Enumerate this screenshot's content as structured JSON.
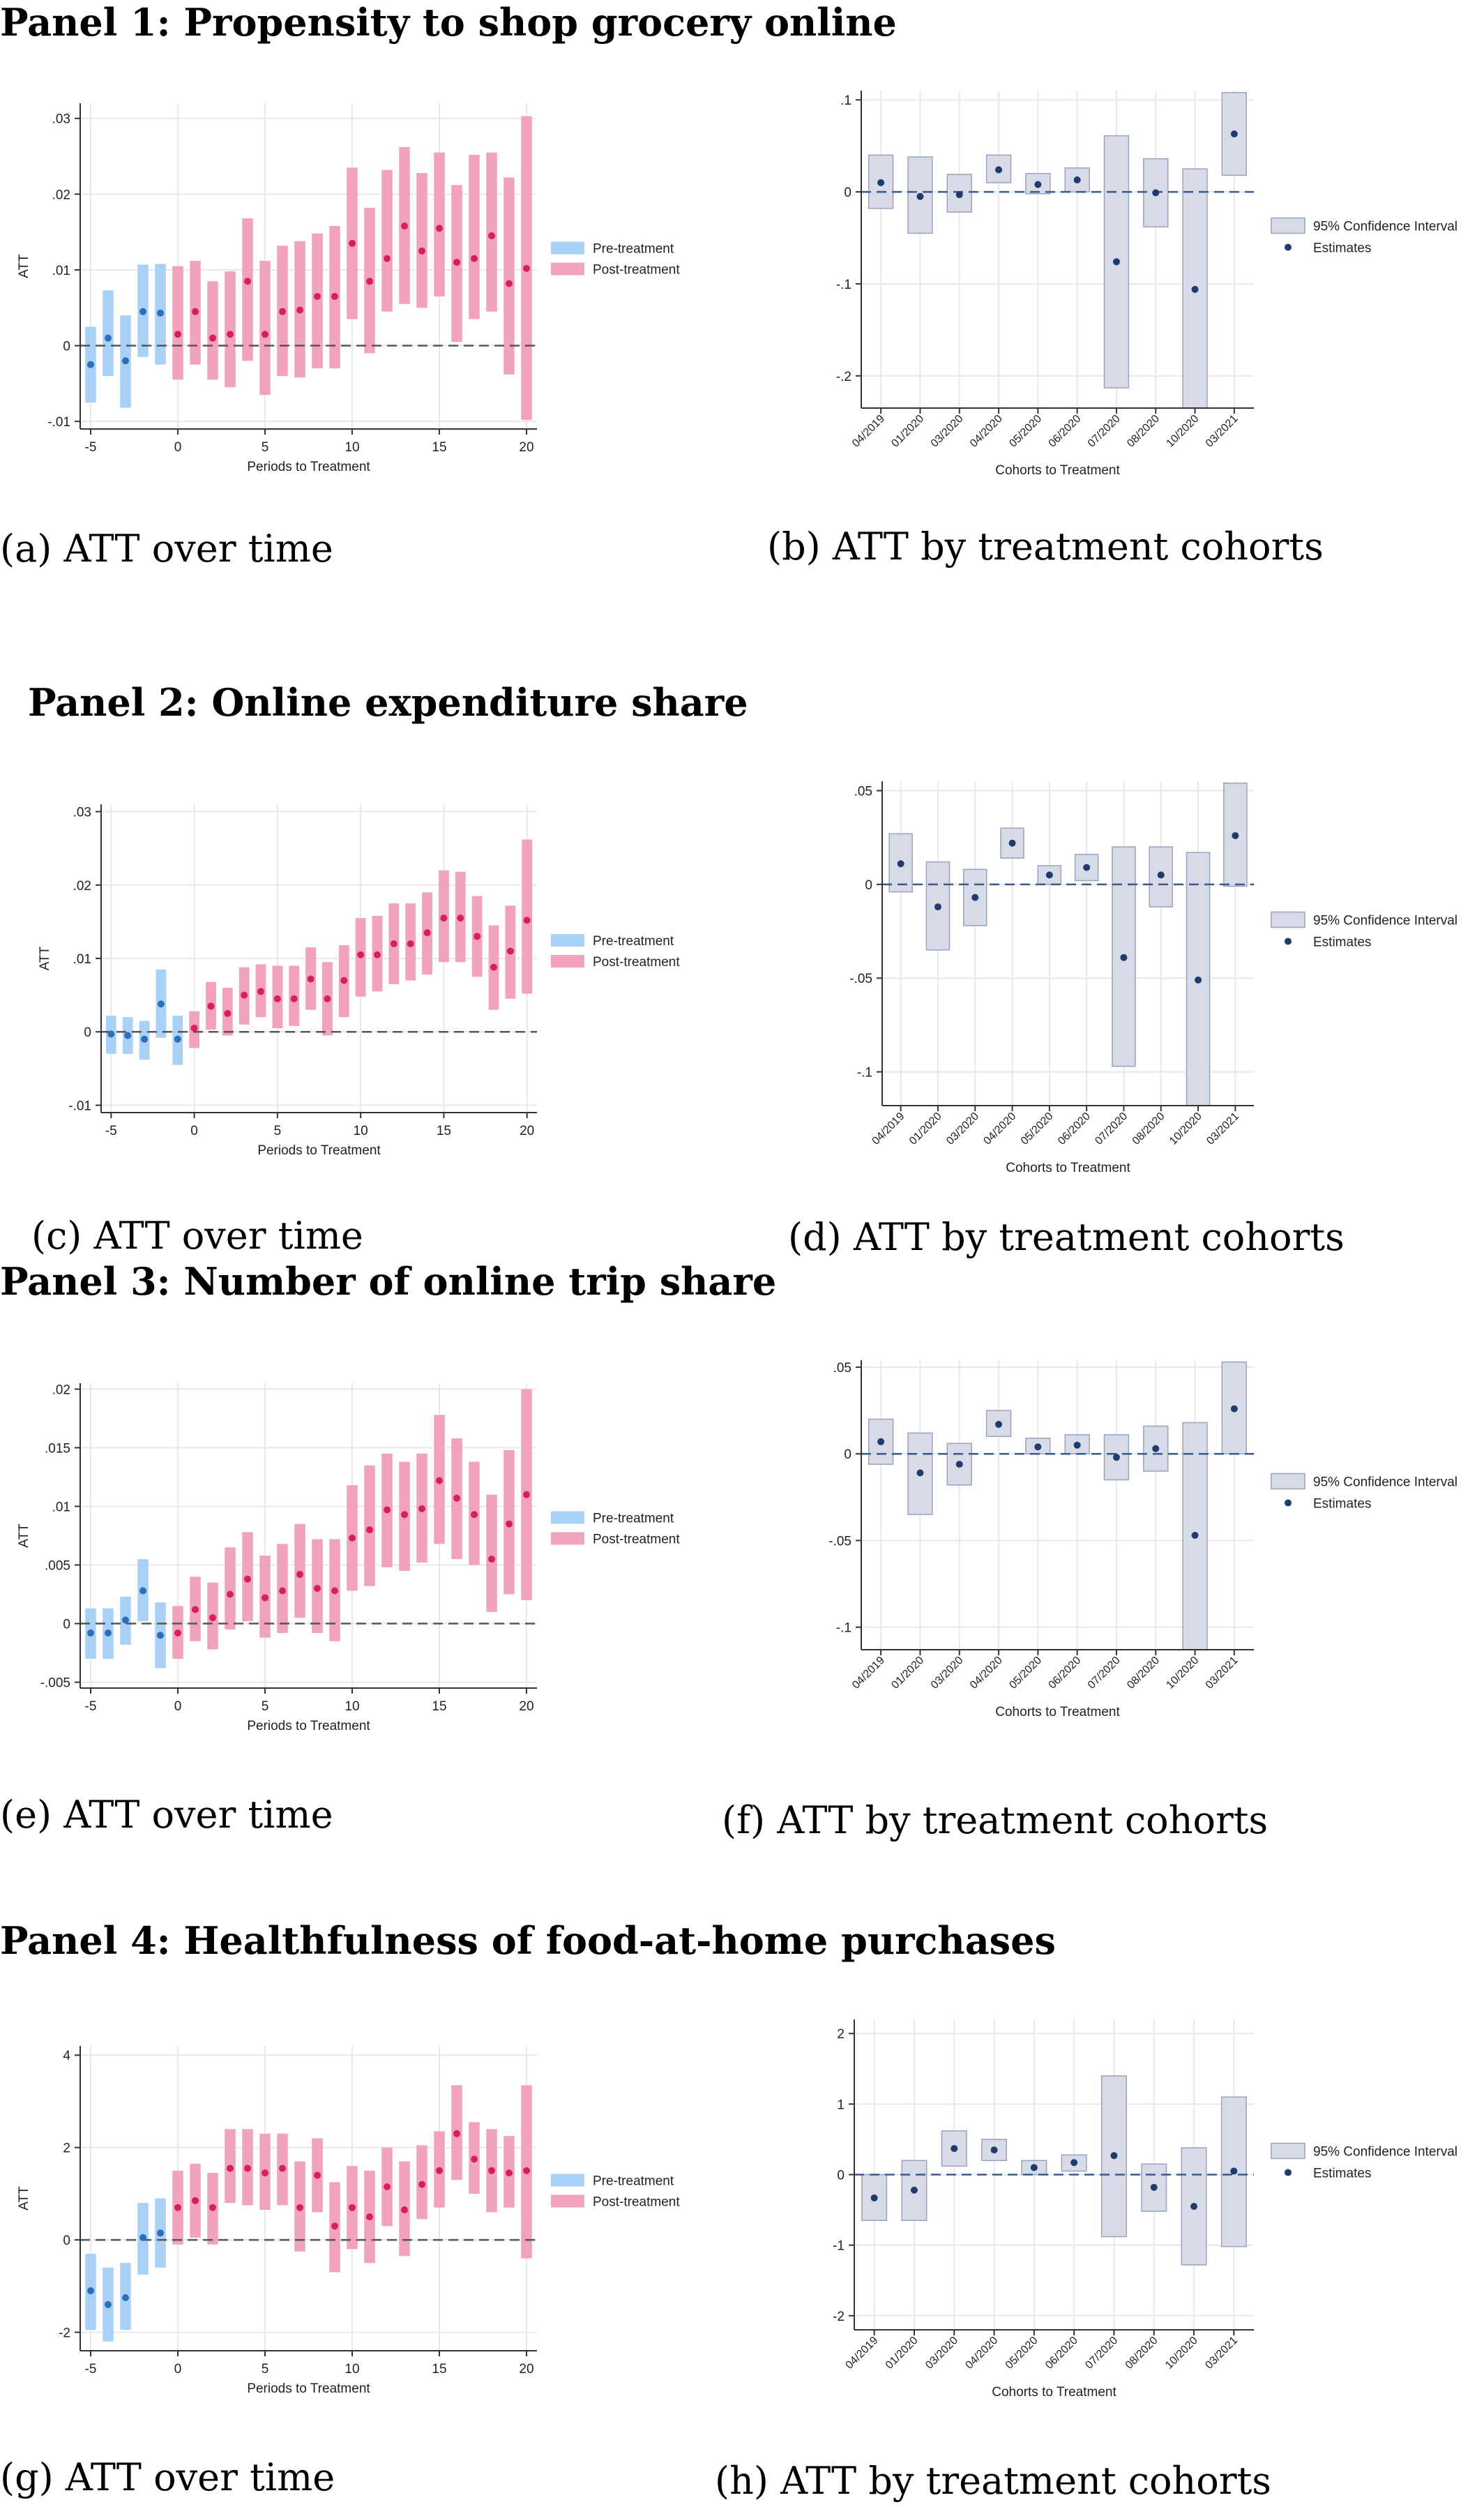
{
  "panels": [
    {
      "title": "Panel 1:  Propensity to shop grocery online",
      "caption_left": "(a) ATT over time",
      "caption_right": "(b) ATT by treatment cohorts"
    },
    {
      "title": "Panel 2:  Online expenditure share",
      "caption_left": "(c) ATT over time",
      "caption_right": "(d) ATT by treatment cohorts"
    },
    {
      "title": "Panel 3:  Number of online trip share",
      "caption_left": "(e) ATT over time",
      "caption_right": "(f) ATT by treatment cohorts"
    },
    {
      "title": "Panel 4:  Healthfulness of food-at-home purchases",
      "caption_left": "(g) ATT over time",
      "caption_right": "(h) ATT by treatment cohorts"
    }
  ],
  "colors": {
    "pre_bar": "#a9d0f5",
    "pre_point": "#2c6fb8",
    "post_bar": "#f0a3bb",
    "post_point": "#d6205a",
    "ci_box": "#d7dbe8",
    "ci_edge": "#9aa3bd",
    "estimate": "#1f3a6e",
    "zero_line": "#555555",
    "grid": "#e8e8e8",
    "axis": "#333333"
  },
  "chart_data": [
    {
      "type": "event-study",
      "xlabel": "Periods to Treatment",
      "ylabel": "ATT",
      "xlim": [
        -5,
        20
      ],
      "xticks": [
        "-5",
        "0",
        "5",
        "10",
        "15",
        "20"
      ],
      "ylim": [
        -0.011,
        0.032
      ],
      "yticks": [
        {
          "v": -0.01,
          "label": "-.01"
        },
        {
          "v": 0,
          "label": "0"
        },
        {
          "v": 0.01,
          "label": ".01"
        },
        {
          "v": 0.02,
          "label": ".02"
        },
        {
          "v": 0.03,
          "label": ".03"
        }
      ],
      "legend": [
        "Pre-treatment",
        "Post-treatment"
      ],
      "pre": {
        "x": [
          -5,
          -4,
          -3,
          -2,
          -1
        ],
        "estimate": [
          -0.0025,
          0.001,
          -0.002,
          0.0045,
          0.0043
        ],
        "lower": [
          -0.0075,
          -0.004,
          -0.0082,
          -0.0015,
          -0.0025
        ],
        "upper": [
          0.0025,
          0.0073,
          0.004,
          0.0107,
          0.0108
        ]
      },
      "post": {
        "x": [
          0,
          1,
          2,
          3,
          4,
          5,
          6,
          7,
          8,
          9,
          10,
          11,
          12,
          13,
          14,
          15,
          16,
          17,
          18,
          19,
          20
        ],
        "estimate": [
          0.0015,
          0.0045,
          0.001,
          0.0015,
          0.0085,
          0.0015,
          0.0045,
          0.0047,
          0.0065,
          0.0065,
          0.0135,
          0.0085,
          0.0115,
          0.0158,
          0.0125,
          0.0155,
          0.011,
          0.0115,
          0.0145,
          0.0082,
          0.0102
        ],
        "lower": [
          -0.0045,
          -0.0025,
          -0.0045,
          -0.0055,
          -0.002,
          -0.0065,
          -0.004,
          -0.0042,
          -0.003,
          -0.003,
          0.0035,
          -0.001,
          0.0045,
          0.0055,
          0.005,
          0.0065,
          0.0005,
          0.0035,
          0.0045,
          -0.0038,
          -0.0098
        ],
        "upper": [
          0.0105,
          0.0112,
          0.0085,
          0.0098,
          0.0168,
          0.0112,
          0.0132,
          0.0138,
          0.0148,
          0.0158,
          0.0235,
          0.0182,
          0.0232,
          0.0262,
          0.0228,
          0.0255,
          0.0212,
          0.0252,
          0.0255,
          0.0222,
          0.0303
        ]
      }
    },
    {
      "type": "cohort-ci",
      "xlabel": "Cohorts to Treatment",
      "ylabel": "",
      "categories": [
        "04/2019",
        "01/2020",
        "03/2020",
        "04/2020",
        "05/2020",
        "06/2020",
        "07/2020",
        "08/2020",
        "10/2020",
        "03/2021"
      ],
      "ylim": [
        -0.235,
        0.11
      ],
      "yticks": [
        {
          "v": 0.1,
          "label": ".1"
        },
        {
          "v": 0,
          "label": "0"
        },
        {
          "v": -0.1,
          "label": "-.1"
        },
        {
          "v": -0.2,
          "label": "-.2"
        }
      ],
      "legend": [
        "95% Confidence Interval",
        "Estimates"
      ],
      "estimate": [
        0.01,
        -0.005,
        -0.003,
        0.024,
        0.008,
        0.013,
        -0.076,
        -0.001,
        -0.106,
        0.063
      ],
      "lower": [
        -0.018,
        -0.045,
        -0.022,
        0.01,
        -0.002,
        0.0,
        -0.213,
        -0.038,
        -0.235,
        0.018
      ],
      "upper": [
        0.04,
        0.038,
        0.019,
        0.04,
        0.02,
        0.026,
        0.061,
        0.036,
        0.025,
        0.108
      ]
    },
    {
      "type": "event-study",
      "xlabel": "Periods to Treatment",
      "ylabel": "ATT",
      "xlim": [
        -5,
        20
      ],
      "xticks": [
        "-5",
        "0",
        "5",
        "10",
        "15",
        "20"
      ],
      "ylim": [
        -0.011,
        0.031
      ],
      "yticks": [
        {
          "v": -0.01,
          "label": "-.01"
        },
        {
          "v": 0,
          "label": "0"
        },
        {
          "v": 0.01,
          "label": ".01"
        },
        {
          "v": 0.02,
          "label": ".02"
        },
        {
          "v": 0.03,
          "label": ".03"
        }
      ],
      "legend": [
        "Pre-treatment",
        "Post-treatment"
      ],
      "pre": {
        "x": [
          -5,
          -4,
          -3,
          -2,
          -1
        ],
        "estimate": [
          -0.0003,
          -0.0005,
          -0.001,
          0.0038,
          -0.001
        ],
        "lower": [
          -0.003,
          -0.003,
          -0.0038,
          -0.0008,
          -0.0045
        ],
        "upper": [
          0.0022,
          0.002,
          0.0015,
          0.0085,
          0.0022
        ]
      },
      "post": {
        "x": [
          0,
          1,
          2,
          3,
          4,
          5,
          6,
          7,
          8,
          9,
          10,
          11,
          12,
          13,
          14,
          15,
          16,
          17,
          18,
          19,
          20
        ],
        "estimate": [
          0.0005,
          0.0035,
          0.0025,
          0.005,
          0.0055,
          0.0045,
          0.0045,
          0.0072,
          0.0045,
          0.007,
          0.0105,
          0.0105,
          0.012,
          0.012,
          0.0135,
          0.0155,
          0.0155,
          0.013,
          0.0088,
          0.011,
          0.0152
        ],
        "lower": [
          -0.0022,
          0.0003,
          -0.0005,
          0.001,
          0.002,
          0.0005,
          0.0008,
          0.003,
          -0.0005,
          0.002,
          0.0048,
          0.0055,
          0.0065,
          0.007,
          0.0078,
          0.0095,
          0.0095,
          0.0075,
          0.003,
          0.0045,
          0.0052
        ],
        "upper": [
          0.0028,
          0.0068,
          0.006,
          0.0088,
          0.0092,
          0.009,
          0.009,
          0.0115,
          0.0095,
          0.0118,
          0.0155,
          0.0158,
          0.0175,
          0.0175,
          0.019,
          0.022,
          0.0218,
          0.0185,
          0.0145,
          0.0172,
          0.0262
        ]
      }
    },
    {
      "type": "cohort-ci",
      "xlabel": "Cohorts to Treatment",
      "ylabel": "",
      "categories": [
        "04/2019",
        "01/2020",
        "03/2020",
        "04/2020",
        "05/2020",
        "06/2020",
        "07/2020",
        "08/2020",
        "10/2020",
        "03/2021"
      ],
      "ylim": [
        -0.118,
        0.055
      ],
      "yticks": [
        {
          "v": 0.05,
          "label": ".05"
        },
        {
          "v": 0,
          "label": "0"
        },
        {
          "v": -0.05,
          "label": "-.05"
        },
        {
          "v": -0.1,
          "label": "-.1"
        }
      ],
      "legend": [
        "95% Confidence Interval",
        "Estimates"
      ],
      "estimate": [
        0.011,
        -0.012,
        -0.007,
        0.022,
        0.005,
        0.009,
        -0.039,
        0.005,
        -0.051,
        0.026
      ],
      "lower": [
        -0.004,
        -0.035,
        -0.022,
        0.014,
        0.0,
        0.002,
        -0.097,
        -0.012,
        -0.118,
        -0.001
      ],
      "upper": [
        0.027,
        0.012,
        0.008,
        0.03,
        0.01,
        0.016,
        0.02,
        0.02,
        0.017,
        0.054
      ]
    },
    {
      "type": "event-study",
      "xlabel": "Periods to Treatment",
      "ylabel": "ATT",
      "xlim": [
        -5,
        20
      ],
      "xticks": [
        "-5",
        "0",
        "5",
        "10",
        "15",
        "20"
      ],
      "ylim": [
        -0.0055,
        0.0205
      ],
      "yticks": [
        {
          "v": -0.005,
          "label": "-.005"
        },
        {
          "v": 0,
          "label": "0"
        },
        {
          "v": 0.005,
          "label": ".005"
        },
        {
          "v": 0.01,
          "label": ".01"
        },
        {
          "v": 0.015,
          "label": ".015"
        },
        {
          "v": 0.02,
          "label": ".02"
        }
      ],
      "legend": [
        "Pre-treatment",
        "Post-treatment"
      ],
      "pre": {
        "x": [
          -5,
          -4,
          -3,
          -2,
          -1
        ],
        "estimate": [
          -0.0008,
          -0.0008,
          0.0003,
          0.0028,
          -0.001
        ],
        "lower": [
          -0.003,
          -0.003,
          -0.0018,
          0.0002,
          -0.0038
        ],
        "upper": [
          0.0013,
          0.0013,
          0.0023,
          0.0055,
          0.0018
        ]
      },
      "post": {
        "x": [
          0,
          1,
          2,
          3,
          4,
          5,
          6,
          7,
          8,
          9,
          10,
          11,
          12,
          13,
          14,
          15,
          16,
          17,
          18,
          19,
          20
        ],
        "estimate": [
          -0.0008,
          0.0012,
          0.0005,
          0.0025,
          0.0038,
          0.0022,
          0.0028,
          0.0042,
          0.003,
          0.0028,
          0.0073,
          0.008,
          0.0097,
          0.0093,
          0.0098,
          0.0122,
          0.0107,
          0.0093,
          0.0055,
          0.0085,
          0.011
        ],
        "lower": [
          -0.003,
          -0.0015,
          -0.0022,
          -0.0005,
          0.0002,
          -0.0012,
          -0.0008,
          0.0005,
          -0.0008,
          -0.0015,
          0.0028,
          0.0032,
          0.0048,
          0.0045,
          0.0052,
          0.0068,
          0.0055,
          0.005,
          0.001,
          0.0025,
          0.002
        ],
        "upper": [
          0.0015,
          0.004,
          0.0035,
          0.0065,
          0.0078,
          0.0058,
          0.0068,
          0.0085,
          0.0072,
          0.0072,
          0.0118,
          0.0135,
          0.0145,
          0.0138,
          0.0145,
          0.0178,
          0.0158,
          0.0138,
          0.011,
          0.0148,
          0.02
        ]
      }
    },
    {
      "type": "cohort-ci",
      "xlabel": "Cohorts to Treatment",
      "ylabel": "",
      "categories": [
        "04/2019",
        "01/2020",
        "03/2020",
        "04/2020",
        "05/2020",
        "06/2020",
        "07/2020",
        "08/2020",
        "10/2020",
        "03/2021"
      ],
      "ylim": [
        -0.113,
        0.054
      ],
      "yticks": [
        {
          "v": 0.05,
          "label": ".05"
        },
        {
          "v": 0,
          "label": "0"
        },
        {
          "v": -0.05,
          "label": "-.05"
        },
        {
          "v": -0.1,
          "label": "-.1"
        }
      ],
      "legend": [
        "95% Confidence Interval",
        "Estimates"
      ],
      "estimate": [
        0.007,
        -0.011,
        -0.006,
        0.017,
        0.004,
        0.005,
        -0.002,
        0.003,
        -0.047,
        0.026
      ],
      "lower": [
        -0.006,
        -0.035,
        -0.018,
        0.01,
        0.0,
        0.0,
        -0.015,
        -0.01,
        -0.113,
        0.0
      ],
      "upper": [
        0.02,
        0.012,
        0.006,
        0.025,
        0.009,
        0.011,
        0.011,
        0.016,
        0.018,
        0.053
      ]
    },
    {
      "type": "event-study",
      "xlabel": "Periods to Treatment",
      "ylabel": "ATT",
      "xlim": [
        -5,
        20
      ],
      "xticks": [
        "-5",
        "0",
        "5",
        "10",
        "15",
        "20"
      ],
      "ylim": [
        -2.4,
        4.2
      ],
      "yticks": [
        {
          "v": -2,
          "label": "-2"
        },
        {
          "v": 0,
          "label": "0"
        },
        {
          "v": 2,
          "label": "2"
        },
        {
          "v": 4,
          "label": "4"
        }
      ],
      "legend": [
        "Pre-treatment",
        "Post-treatment"
      ],
      "pre": {
        "x": [
          -5,
          -4,
          -3,
          -2,
          -1
        ],
        "estimate": [
          -1.1,
          -1.4,
          -1.25,
          0.05,
          0.15
        ],
        "lower": [
          -1.95,
          -2.2,
          -1.95,
          -0.75,
          -0.6
        ],
        "upper": [
          -0.3,
          -0.6,
          -0.5,
          0.8,
          0.9
        ]
      },
      "post": {
        "x": [
          0,
          1,
          2,
          3,
          4,
          5,
          6,
          7,
          8,
          9,
          10,
          11,
          12,
          13,
          14,
          15,
          16,
          17,
          18,
          19,
          20
        ],
        "estimate": [
          0.7,
          0.85,
          0.7,
          1.55,
          1.55,
          1.45,
          1.55,
          0.7,
          1.4,
          0.3,
          0.7,
          0.5,
          1.15,
          0.65,
          1.2,
          1.5,
          2.3,
          1.75,
          1.5,
          1.45,
          1.5
        ],
        "lower": [
          -0.1,
          0.05,
          -0.1,
          0.8,
          0.75,
          0.65,
          0.75,
          -0.25,
          0.6,
          -0.7,
          -0.2,
          -0.5,
          0.3,
          -0.35,
          0.45,
          0.7,
          1.3,
          1.0,
          0.6,
          0.7,
          -0.4
        ],
        "upper": [
          1.5,
          1.65,
          1.45,
          2.4,
          2.4,
          2.3,
          2.3,
          1.7,
          2.2,
          1.25,
          1.6,
          1.5,
          2.0,
          1.7,
          2.05,
          2.35,
          3.35,
          2.55,
          2.4,
          2.25,
          3.35
        ]
      }
    },
    {
      "type": "cohort-ci",
      "xlabel": "Cohorts to Treatment",
      "ylabel": "",
      "categories": [
        "04/2019",
        "01/2020",
        "03/2020",
        "04/2020",
        "05/2020",
        "06/2020",
        "07/2020",
        "08/2020",
        "10/2020",
        "03/2021"
      ],
      "ylim": [
        -2.2,
        2.2
      ],
      "yticks": [
        {
          "v": 2,
          "label": "2"
        },
        {
          "v": 1,
          "label": "1"
        },
        {
          "v": 0,
          "label": "0"
        },
        {
          "v": -1,
          "label": "-1"
        },
        {
          "v": -2,
          "label": "-2"
        }
      ],
      "legend": [
        "95% Confidence Interval",
        "Estimates"
      ],
      "estimate": [
        -0.33,
        -0.22,
        0.37,
        0.35,
        0.1,
        0.17,
        0.27,
        -0.18,
        -0.45,
        0.05
      ],
      "lower": [
        -0.65,
        -0.65,
        0.12,
        0.2,
        0.0,
        0.05,
        -0.88,
        -0.52,
        -1.28,
        -1.02
      ],
      "upper": [
        0.0,
        0.2,
        0.62,
        0.5,
        0.2,
        0.28,
        1.4,
        0.15,
        0.38,
        1.1
      ]
    }
  ]
}
